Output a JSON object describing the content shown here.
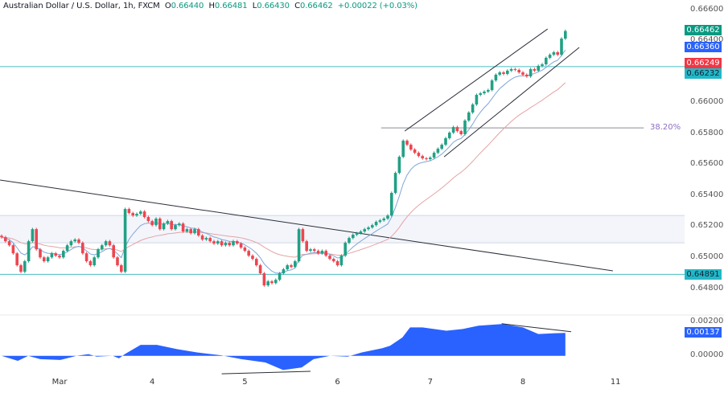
{
  "header": {
    "symbol": "Australian Dollar / U.S. Dollar, 1h, FXCM",
    "open_label": "O",
    "open": "0.66440",
    "high_label": "H",
    "high": "0.66481",
    "low_label": "L",
    "low": "0.66430",
    "close_label": "C",
    "close": "0.66462",
    "change": "+0.00022 (+0.03%)"
  },
  "colors": {
    "up": "#22a084",
    "down": "#ec4651",
    "ema_fast": "#7ea6d9",
    "ema_slow": "#e4a3a6",
    "level_line": "#48bcc0",
    "zone_fill": "#f3f5fb",
    "zone_border": "#cfd6e4",
    "trendline": "#2a2e39",
    "fib_line": "#8a8d96",
    "fib_label": "#8e6fc4",
    "oscillator": "#2962ff",
    "tag_last": "#089981",
    "tag_fast": "#2962ff",
    "tag_slow": "#f23645",
    "tag_level": "#22b8c8"
  },
  "price_axis": {
    "ticks": [
      "0.66600",
      "0.66400",
      "0.66000",
      "0.65800",
      "0.65600",
      "0.65400",
      "0.65200",
      "0.65000",
      "0.64800"
    ],
    "tags": {
      "last": "0.66462",
      "ema_fast": "0.66360",
      "ema_slow": "0.66249",
      "level_upper": "0.66232",
      "level_lower": "0.64891"
    }
  },
  "osc_axis": {
    "ticks": [
      "0.00200",
      "0.00000"
    ],
    "tag": "0.00137"
  },
  "time_axis": {
    "labels": [
      {
        "text": "Mar",
        "bar": 15
      },
      {
        "text": "4",
        "bar": 39
      },
      {
        "text": "5",
        "bar": 63
      },
      {
        "text": "6",
        "bar": 87
      },
      {
        "text": "7",
        "bar": 111
      },
      {
        "text": "8",
        "bar": 135
      },
      {
        "text": "11",
        "bar": 159
      }
    ]
  },
  "annotations": {
    "fib_label": "38.20%",
    "fib_level": 0.65837,
    "levels": [
      0.66232,
      0.64891
    ],
    "zone": [
      0.65095,
      0.65271
    ],
    "trendline": [
      [
        -0.4,
        0.655
      ],
      [
        158.3,
        0.64914
      ]
    ],
    "channel_upper": [
      [
        104.4,
        0.65816
      ],
      [
        141.4,
        0.66475
      ]
    ],
    "channel_lower": [
      [
        114.6,
        0.6565
      ],
      [
        149.6,
        0.66356
      ]
    ],
    "osc_div_low": [
      [
        57,
        -0.00108
      ],
      [
        80,
        -0.00093
      ]
    ],
    "osc_div_high": [
      [
        129.5,
        0.00192
      ],
      [
        147.5,
        0.00144
      ]
    ]
  },
  "chart_data": {
    "type": "candlestick",
    "title": "Australian Dollar / U.S. Dollar, 1h, FXCM",
    "ylim": [
      0.6476,
      0.6665
    ],
    "grid": false,
    "first_open": 0.6514,
    "close": [
      0.65131,
      0.65105,
      0.65079,
      0.65027,
      0.6495,
      0.64908,
      0.64976,
      0.65105,
      0.65183,
      0.65053,
      0.65001,
      0.64976,
      0.65001,
      0.65027,
      0.65012,
      0.65001,
      0.65043,
      0.65079,
      0.65105,
      0.65116,
      0.65095,
      0.65027,
      0.64976,
      0.6495,
      0.65001,
      0.65053,
      0.65079,
      0.65105,
      0.65079,
      0.65001,
      0.6495,
      0.64908,
      0.65313,
      0.65287,
      0.65271,
      0.65282,
      0.65297,
      0.65261,
      0.65235,
      0.65209,
      0.65251,
      0.65183,
      0.65219,
      0.65235,
      0.65183,
      0.65209,
      0.65219,
      0.65168,
      0.65183,
      0.65157,
      0.65183,
      0.65142,
      0.65116,
      0.65126,
      0.65105,
      0.6509,
      0.65105,
      0.65079,
      0.65095,
      0.65079,
      0.65105,
      0.6509,
      0.65064,
      0.65043,
      0.65012,
      0.64991,
      0.6495,
      0.64898,
      0.6482,
      0.64846,
      0.64835,
      0.64856,
      0.64898,
      0.64924,
      0.6495,
      0.64939,
      0.64976,
      0.65183,
      0.65105,
      0.65043,
      0.65053,
      0.65043,
      0.65027,
      0.65043,
      0.65012,
      0.64991,
      0.64976,
      0.6495,
      0.65012,
      0.65095,
      0.65126,
      0.65147,
      0.65157,
      0.65168,
      0.65183,
      0.65194,
      0.65209,
      0.6523,
      0.6524,
      0.65251,
      0.65271,
      0.65417,
      0.65546,
      0.6565,
      0.65754,
      0.65728,
      0.65697,
      0.65676,
      0.65655,
      0.6564,
      0.65635,
      0.65645,
      0.65676,
      0.65702,
      0.65728,
      0.6577,
      0.65806,
      0.65842,
      0.65816,
      0.65796,
      0.65884,
      0.65936,
      0.65988,
      0.6605,
      0.6606,
      0.66071,
      0.66081,
      0.66143,
      0.6618,
      0.66195,
      0.66185,
      0.66206,
      0.66216,
      0.66211,
      0.66195,
      0.6618,
      0.66169,
      0.66216,
      0.66206,
      0.66237,
      0.66247,
      0.66289,
      0.66309,
      0.66325,
      0.66309,
      0.66413,
      0.66462
    ],
    "oscillator": {
      "type": "area",
      "ylim": [
        -0.0011,
        0.0021
      ],
      "points": [
        [
          0,
          0
        ],
        [
          4.2,
          -0.0003
        ],
        [
          6.9,
          0
        ],
        [
          10,
          -0.0002
        ],
        [
          15.2,
          -0.00025
        ],
        [
          19.4,
          0
        ],
        [
          22.5,
          0.0001
        ],
        [
          24.6,
          -5e-05
        ],
        [
          28.8,
          0
        ],
        [
          30.4,
          -0.00015
        ],
        [
          31.9,
          0.0001
        ],
        [
          36,
          0.00065
        ],
        [
          40.2,
          0.00065
        ],
        [
          45.4,
          0.0004
        ],
        [
          50.6,
          0.0002
        ],
        [
          56.9,
          3e-05
        ],
        [
          62.1,
          -0.0002
        ],
        [
          68.3,
          -0.0004
        ],
        [
          72.9,
          -0.00085
        ],
        [
          77.7,
          -0.0007
        ],
        [
          80.8,
          -0.0002
        ],
        [
          85,
          0
        ],
        [
          89.6,
          -5e-05
        ],
        [
          93.3,
          0.0002
        ],
        [
          98.5,
          0.00045
        ],
        [
          100.6,
          0.0006
        ],
        [
          103.8,
          0.0011
        ],
        [
          105.8,
          0.0017
        ],
        [
          109,
          0.0017
        ],
        [
          112,
          0.0016
        ],
        [
          115.2,
          0.0015
        ],
        [
          119.4,
          0.0016
        ],
        [
          123.5,
          0.0018
        ],
        [
          129.8,
          0.0019
        ],
        [
          135,
          0.0017
        ],
        [
          139,
          0.0013
        ],
        [
          143.3,
          0.00135
        ],
        [
          146,
          0.00137
        ]
      ]
    }
  }
}
